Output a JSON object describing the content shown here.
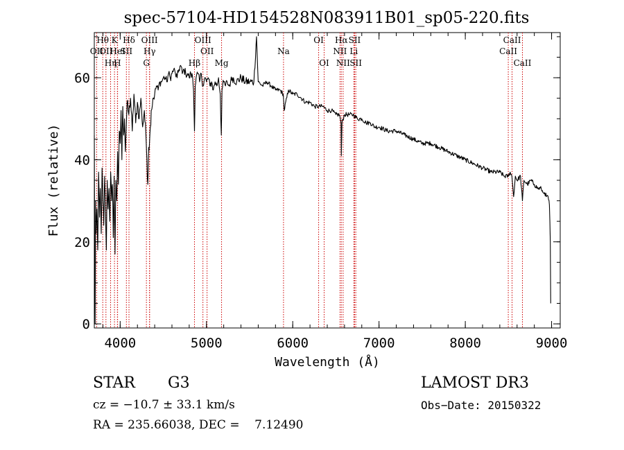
{
  "chart_data": {
    "type": "line",
    "title": "spec-57104-HD154528N083911B01_sp05-220.fits",
    "xlabel": "Wavelength (Å)",
    "ylabel": "Flux (relative)",
    "xlim": [
      3700,
      9100
    ],
    "ylim": [
      -1,
      71
    ],
    "xticks": [
      4000,
      5000,
      6000,
      7000,
      8000,
      9000
    ],
    "yticks": [
      0,
      20,
      40,
      60
    ],
    "x_minor_step": 200,
    "y_minor_step": 5,
    "grid": false,
    "series": [
      {
        "name": "spectrum",
        "x": [
          3700,
          3705,
          3710,
          3715,
          3720,
          3730,
          3740,
          3750,
          3760,
          3770,
          3780,
          3790,
          3800,
          3810,
          3820,
          3830,
          3840,
          3850,
          3860,
          3870,
          3880,
          3890,
          3900,
          3910,
          3920,
          3930,
          3940,
          3950,
          3960,
          3970,
          3980,
          3990,
          4000,
          4010,
          4020,
          4030,
          4040,
          4050,
          4060,
          4080,
          4100,
          4120,
          4140,
          4160,
          4180,
          4200,
          4220,
          4240,
          4260,
          4280,
          4300,
          4310,
          4320,
          4330,
          4340,
          4350,
          4360,
          4380,
          4400,
          4420,
          4440,
          4460,
          4480,
          4500,
          4520,
          4540,
          4560,
          4580,
          4600,
          4620,
          4640,
          4660,
          4680,
          4700,
          4720,
          4740,
          4760,
          4780,
          4800,
          4820,
          4840,
          4850,
          4861,
          4870,
          4880,
          4900,
          4920,
          4940,
          4960,
          4980,
          5000,
          5020,
          5040,
          5060,
          5080,
          5100,
          5120,
          5140,
          5160,
          5172,
          5180,
          5200,
          5220,
          5240,
          5260,
          5280,
          5300,
          5350,
          5400,
          5450,
          5500,
          5550,
          5580,
          5600,
          5650,
          5700,
          5750,
          5800,
          5850,
          5890,
          5900,
          5950,
          6000,
          6050,
          6100,
          6150,
          6200,
          6250,
          6300,
          6350,
          6400,
          6450,
          6500,
          6540,
          6560,
          6563,
          6570,
          6600,
          6650,
          6700,
          6750,
          6800,
          6850,
          6900,
          6950,
          7000,
          7100,
          7200,
          7300,
          7400,
          7500,
          7600,
          7700,
          7800,
          7900,
          8000,
          8100,
          8200,
          8300,
          8400,
          8450,
          8500,
          8520,
          8540,
          8560,
          8580,
          8600,
          8640,
          8662,
          8680,
          8720,
          8760,
          8800,
          8840,
          8880,
          8900,
          8920,
          8940,
          8960,
          8975,
          8985,
          8990
        ],
        "values": [
          46,
          17,
          0,
          30,
          22,
          28,
          18,
          37,
          26,
          33,
          22,
          38,
          30,
          24,
          36,
          27,
          18,
          35,
          28,
          33,
          25,
          37,
          30,
          34,
          21,
          36,
          17,
          35,
          30,
          42,
          34,
          47,
          44,
          52,
          40,
          53,
          46,
          50,
          42,
          54,
          51,
          55,
          47,
          56,
          49,
          54,
          50,
          55,
          48,
          52,
          45,
          40,
          34,
          43,
          44,
          48,
          52,
          55,
          56,
          58,
          57,
          59,
          59,
          60,
          60,
          59,
          61,
          60,
          61,
          62,
          61,
          60,
          62,
          63,
          61,
          62,
          61,
          61,
          60,
          61,
          60,
          57,
          47,
          58,
          60,
          61,
          59,
          61,
          58,
          60,
          59,
          60,
          58,
          59,
          57,
          59,
          58,
          60,
          56,
          46,
          57,
          59,
          58,
          59,
          58,
          59,
          60,
          59,
          60,
          59,
          59,
          59,
          70,
          59,
          58,
          59,
          58,
          57,
          57,
          56,
          52,
          57,
          56,
          56,
          55,
          54,
          54,
          53,
          53,
          53,
          52,
          52,
          51,
          51,
          49,
          41,
          49,
          51,
          51,
          51,
          50,
          50,
          49,
          49,
          48,
          48,
          47,
          47,
          46,
          45,
          44,
          44,
          43,
          42,
          41,
          40,
          39,
          38,
          37,
          37,
          36,
          36,
          37,
          36,
          31,
          36,
          35,
          36,
          30,
          35,
          34,
          35,
          34,
          33,
          33,
          32,
          32,
          31,
          31,
          29,
          20,
          5
        ]
      }
    ],
    "lines": [
      {
        "label": "OII",
        "wavelength": 3727,
        "row": 2
      },
      {
        "label": "Hθ",
        "wavelength": 3798,
        "row": 1
      },
      {
        "label": "OII",
        "wavelength": 3835,
        "row": 2
      },
      {
        "label": "Hη",
        "wavelength": 3889,
        "row": 3
      },
      {
        "label": "K",
        "wavelength": 3934,
        "row": 1
      },
      {
        "label": "HeI",
        "wavelength": 3970,
        "row": 2
      },
      {
        "label": "H",
        "wavelength": 3968,
        "row": 3
      },
      {
        "label": "Hδ",
        "wavelength": 4102,
        "row": 1
      },
      {
        "label": "SII",
        "wavelength": 4072,
        "row": 2
      },
      {
        "label": "OIII",
        "wavelength": 4340,
        "row": 1
      },
      {
        "label": "Hγ",
        "wavelength": 4341,
        "row": 2
      },
      {
        "label": "G",
        "wavelength": 4304,
        "row": 3
      },
      {
        "label": "Hβ",
        "wavelength": 4861,
        "row": 3
      },
      {
        "label": "OIII",
        "wavelength": 4959,
        "row": 1
      },
      {
        "label": "OII",
        "wavelength": 5007,
        "row": 2
      },
      {
        "label": "Mg",
        "wavelength": 5175,
        "row": 3
      },
      {
        "label": "Na",
        "wavelength": 5893,
        "row": 2
      },
      {
        "label": "OI",
        "wavelength": 6300,
        "row": 1
      },
      {
        "label": "OI",
        "wavelength": 6364,
        "row": 3
      },
      {
        "label": "Hα",
        "wavelength": 6563,
        "row": 1
      },
      {
        "label": "NII",
        "wavelength": 6548,
        "row": 2
      },
      {
        "label": "NII",
        "wavelength": 6584,
        "row": 3
      },
      {
        "label": "SII",
        "wavelength": 6717,
        "row": 1
      },
      {
        "label": "Li",
        "wavelength": 6708,
        "row": 2
      },
      {
        "label": "SII",
        "wavelength": 6731,
        "row": 3
      },
      {
        "label": "CaII",
        "wavelength": 8542,
        "row": 1
      },
      {
        "label": "CaII",
        "wavelength": 8498,
        "row": 2
      },
      {
        "label": "CaII",
        "wavelength": 8662,
        "row": 3
      }
    ],
    "line_color": "#cc0000",
    "spectrum_color": "#000000"
  },
  "info": {
    "object_type": "STAR",
    "subclass": "G3",
    "survey": "LAMOST DR3",
    "redshift_text": "cz = −10.7 ± 33.1 km/s",
    "obs_date": "Obs−Date: 20150322",
    "coords": "RA = 235.66038, DEC =    7.12490"
  }
}
